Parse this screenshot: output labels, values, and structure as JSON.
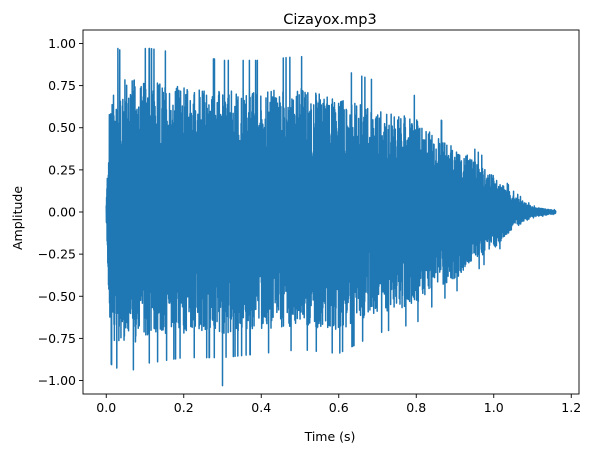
{
  "chart_data": {
    "type": "line",
    "title": "Cizayox.mp3",
    "xlabel": "Time (s)",
    "ylabel": "Amplitude",
    "xlim": [
      -0.06,
      1.22
    ],
    "ylim": [
      -1.08,
      1.08
    ],
    "xticks": [
      0.0,
      0.2,
      0.4,
      0.6,
      0.8,
      1.0,
      1.2
    ],
    "xtick_labels": [
      "0.0",
      "0.2",
      "0.4",
      "0.6",
      "0.8",
      "1.0",
      "1.2"
    ],
    "yticks": [
      -1.0,
      -0.75,
      -0.5,
      -0.25,
      0.0,
      0.25,
      0.5,
      0.75,
      1.0
    ],
    "ytick_labels": [
      "−1.00",
      "−0.75",
      "−0.50",
      "−0.25",
      "0.00",
      "0.25",
      "0.50",
      "0.75",
      "1.00"
    ],
    "grid": false,
    "legend": "none",
    "series": [
      {
        "color": "#1f77b4",
        "duration": 1.16,
        "peak_max": 0.97,
        "peak_min": -1.03,
        "peak_max_time": 0.03,
        "peak_min_time": 0.3,
        "envelope_time": [
          0.0,
          0.01,
          0.05,
          0.1,
          0.2,
          0.3,
          0.4,
          0.5,
          0.6,
          0.7,
          0.8,
          0.85,
          0.9,
          0.95,
          1.0,
          1.05,
          1.1,
          1.16
        ],
        "envelope_upper": [
          0.05,
          0.72,
          0.8,
          0.78,
          0.75,
          0.72,
          0.72,
          0.74,
          0.68,
          0.62,
          0.55,
          0.45,
          0.4,
          0.3,
          0.22,
          0.1,
          0.03,
          0.01
        ],
        "envelope_lower": [
          -0.05,
          -0.75,
          -0.8,
          -0.75,
          -0.72,
          -0.72,
          -0.7,
          -0.68,
          -0.7,
          -0.6,
          -0.55,
          -0.45,
          -0.4,
          -0.3,
          -0.22,
          -0.1,
          -0.03,
          -0.01
        ]
      }
    ]
  }
}
